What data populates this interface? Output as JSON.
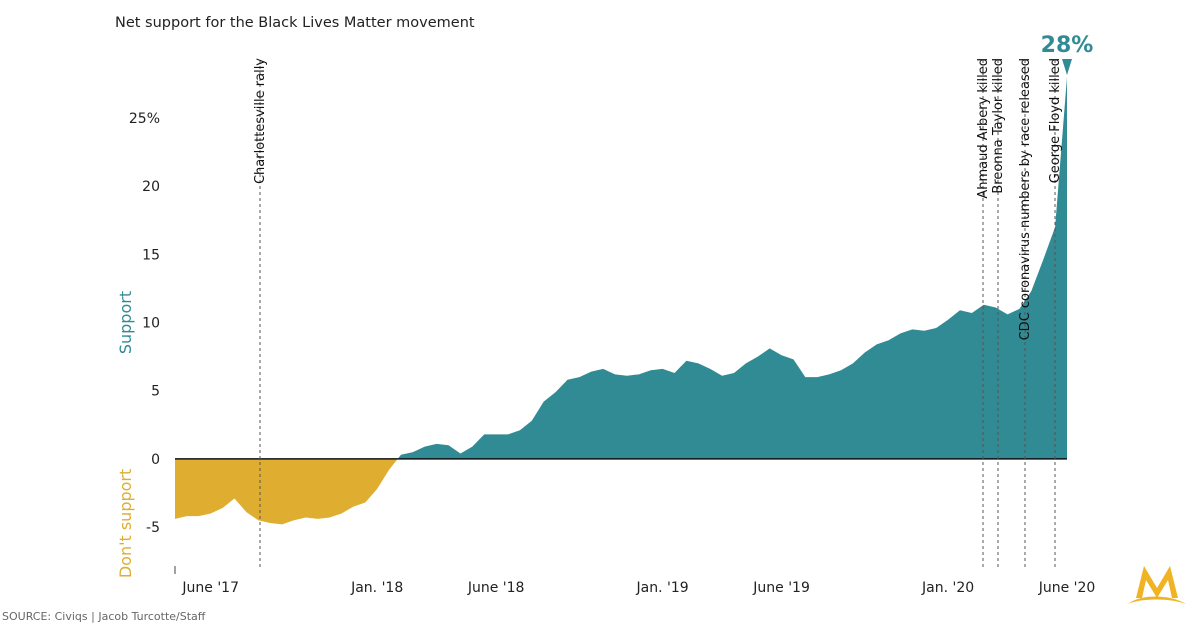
{
  "chart_data": {
    "type": "area",
    "title": "Net support for the Black Lives Matter movement",
    "y_label_positive": "Support",
    "y_label_negative": "Don't support",
    "source": "SOURCE: Civiqs | Jacob Turcotte/Staff",
    "categories": [
      null,
      null,
      null,
      "June '17",
      null,
      null,
      null,
      null,
      null,
      null,
      null,
      null,
      null,
      null,
      null,
      null,
      null,
      "Jan. '18",
      null,
      null,
      null,
      null,
      null,
      null,
      null,
      null,
      null,
      "June '18",
      null,
      null,
      null,
      null,
      null,
      null,
      null,
      null,
      null,
      null,
      null,
      null,
      null,
      "Jan. '19",
      null,
      null,
      null,
      null,
      null,
      null,
      null,
      null,
      null,
      "June '19",
      null,
      null,
      null,
      null,
      null,
      null,
      null,
      null,
      null,
      null,
      null,
      null,
      null,
      "Jan. '20",
      null,
      null,
      null,
      null,
      null,
      null,
      null,
      null,
      null,
      "June '20"
    ],
    "values": [
      -4.4,
      -4.2,
      -4.2,
      -4.0,
      -3.6,
      -2.9,
      -3.9,
      -4.5,
      -4.7,
      -4.8,
      -4.5,
      -4.3,
      -4.4,
      -4.3,
      -4.0,
      -3.5,
      -3.2,
      -2.2,
      -0.8,
      0.3,
      0.5,
      0.9,
      1.1,
      1.0,
      0.4,
      0.9,
      1.8,
      1.8,
      1.8,
      2.1,
      2.8,
      4.2,
      4.9,
      5.8,
      6.0,
      6.4,
      6.6,
      6.2,
      6.1,
      6.2,
      6.5,
      6.6,
      6.3,
      7.2,
      7.0,
      6.6,
      6.1,
      6.3,
      7.0,
      7.5,
      8.1,
      7.6,
      7.3,
      6.0,
      6.0,
      6.2,
      6.5,
      7.0,
      7.8,
      8.4,
      8.7,
      9.2,
      9.5,
      9.4,
      9.6,
      10.2,
      10.9,
      10.7,
      11.3,
      11.1,
      10.6,
      11.0,
      12.3,
      14.6,
      17.0,
      28
    ],
    "value_labels": [
      null,
      null,
      null,
      null,
      null,
      null,
      null,
      null,
      null,
      null,
      null,
      null,
      null,
      null,
      null,
      null,
      null,
      null,
      null,
      null,
      null,
      null,
      null,
      null,
      null,
      null,
      null,
      null,
      null,
      null,
      null,
      null,
      null,
      null,
      null,
      null,
      null,
      null,
      null,
      null,
      null,
      null,
      null,
      null,
      null,
      null,
      null,
      null,
      null,
      null,
      null,
      null,
      null,
      null,
      null,
      null,
      null,
      null,
      null,
      null,
      null,
      null,
      null,
      null,
      null,
      null,
      null,
      null,
      null,
      null,
      null,
      null,
      null,
      null,
      null,
      "28%"
    ],
    "positive_color": "#318b94",
    "negative_color": "#dfad30",
    "ylim": [
      -8,
      29
    ],
    "yticks": [
      -5,
      0,
      5,
      10,
      15,
      20,
      {
        "value": 25,
        "label": "25%"
      }
    ],
    "annotations": [
      "Charlottesville rally",
      "Ahmaud Arbery killed",
      "Breonna Taylor killed",
      "CDC coronavirus numbers by race released",
      "George Floyd killed"
    ]
  }
}
